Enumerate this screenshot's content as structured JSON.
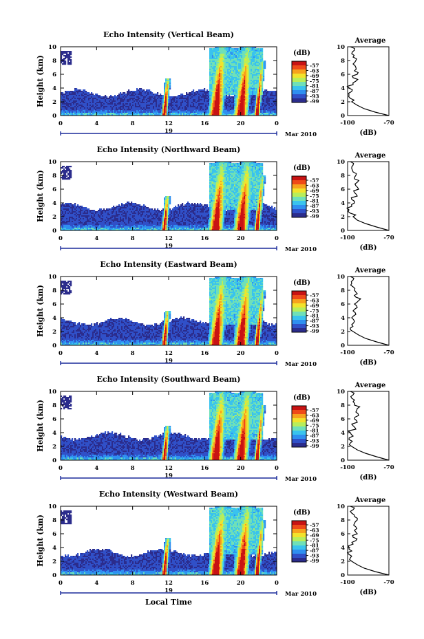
{
  "figure": {
    "xaxis_label": "Local Time",
    "date_label": "Mar 2010",
    "day_label": "19",
    "avg_title": "Average",
    "avg_xlabel": "(dB)",
    "cbar_unit": "(dB)",
    "ylabel": "Height (km)"
  },
  "colors": {
    "colormap": [
      "#2b2c8c",
      "#3050c8",
      "#2f8ff0",
      "#39c3ee",
      "#6fe0b8",
      "#b8ee5a",
      "#f2e32c",
      "#f7a21d",
      "#ef4a18",
      "#c81313"
    ]
  },
  "chart_data": [
    {
      "type": "heatmap",
      "title": "Echo Intensity (Vertical Beam)",
      "xlabel": "Local Time",
      "ylabel": "Height (km)",
      "xlim": [
        0,
        24
      ],
      "ylim": [
        0,
        10
      ],
      "xticks": [
        "0",
        "4",
        "8",
        "12",
        "16",
        "20",
        "0"
      ],
      "yticks": [
        "0",
        "2",
        "4",
        "6",
        "8",
        "10"
      ],
      "colorbar": {
        "label": "(dB)",
        "ticks": [
          "-57",
          "-63",
          "-69",
          "-75",
          "-81",
          "-87",
          "-93",
          "-99"
        ]
      },
      "events": [
        {
          "t": 11.5,
          "top": 5.5
        },
        {
          "t": 17.2,
          "top": 10
        },
        {
          "t": 20,
          "top": 10
        },
        {
          "t": 21.8,
          "top": 8
        }
      ],
      "layer_top": 3.3,
      "average": {
        "xlim": [
          -100,
          -70
        ],
        "xticks": [
          "-100",
          "-70"
        ],
        "yticks": [
          "0",
          "2",
          "4",
          "6",
          "8",
          "10"
        ],
        "profile": [
          [
            0,
            -70
          ],
          [
            0.5,
            -80
          ],
          [
            1,
            -88
          ],
          [
            1.5,
            -93
          ],
          [
            2,
            -97
          ],
          [
            2.5,
            -98
          ],
          [
            3,
            -99
          ],
          [
            3.5,
            -97
          ],
          [
            4,
            -99
          ],
          [
            4.5,
            -96
          ],
          [
            5,
            -94
          ],
          [
            5.5,
            -96
          ],
          [
            6,
            -93
          ],
          [
            6.5,
            -95
          ],
          [
            7,
            -94
          ],
          [
            7.5,
            -96
          ],
          [
            8,
            -94
          ],
          [
            8.5,
            -96
          ],
          [
            9,
            -97
          ],
          [
            9.5,
            -95
          ],
          [
            10,
            -98
          ]
        ]
      }
    },
    {
      "type": "heatmap",
      "title": "Echo Intensity (Northward Beam)",
      "xlabel": "Local Time",
      "ylabel": "Height (km)",
      "xlim": [
        0,
        24
      ],
      "ylim": [
        0,
        10
      ],
      "xticks": [
        "0",
        "4",
        "8",
        "12",
        "16",
        "20",
        "0"
      ],
      "yticks": [
        "0",
        "2",
        "4",
        "6",
        "8",
        "10"
      ],
      "colorbar": {
        "label": "(dB)",
        "ticks": [
          "-57",
          "-63",
          "-69",
          "-75",
          "-81",
          "-87",
          "-93",
          "-99"
        ]
      },
      "events": [
        {
          "t": 11.5,
          "top": 5.0
        },
        {
          "t": 17.2,
          "top": 10
        },
        {
          "t": 20,
          "top": 10
        },
        {
          "t": 21.8,
          "top": 8
        }
      ],
      "layer_top": 3.5,
      "average": {
        "xlim": [
          -100,
          -70
        ],
        "xticks": [
          "-100",
          "-70"
        ],
        "yticks": [
          "0",
          "2",
          "4",
          "6",
          "8",
          "10"
        ],
        "profile": [
          [
            0,
            -70
          ],
          [
            0.5,
            -79
          ],
          [
            1,
            -87
          ],
          [
            1.5,
            -93
          ],
          [
            2,
            -96
          ],
          [
            2.5,
            -98
          ],
          [
            3,
            -99
          ],
          [
            3.5,
            -97
          ],
          [
            4,
            -95
          ],
          [
            4.5,
            -97
          ],
          [
            5,
            -93
          ],
          [
            5.5,
            -95
          ],
          [
            6,
            -92
          ],
          [
            6.5,
            -94
          ],
          [
            7,
            -93
          ],
          [
            7.5,
            -95
          ],
          [
            8,
            -94
          ],
          [
            8.5,
            -96
          ],
          [
            9,
            -97
          ],
          [
            9.5,
            -96
          ],
          [
            10,
            -98
          ]
        ]
      }
    },
    {
      "type": "heatmap",
      "title": "Echo Intensity (Eastward Beam)",
      "xlabel": "Local Time",
      "ylabel": "Height (km)",
      "xlim": [
        0,
        24
      ],
      "ylim": [
        0,
        10
      ],
      "xticks": [
        "0",
        "4",
        "8",
        "12",
        "16",
        "20",
        "0"
      ],
      "yticks": [
        "0",
        "2",
        "4",
        "6",
        "8",
        "10"
      ],
      "colorbar": {
        "label": "(dB)",
        "ticks": [
          "-57",
          "-63",
          "-69",
          "-75",
          "-81",
          "-87",
          "-93",
          "-99"
        ]
      },
      "events": [
        {
          "t": 11.5,
          "top": 5.0
        },
        {
          "t": 17.2,
          "top": 10
        },
        {
          "t": 20,
          "top": 10
        },
        {
          "t": 21.8,
          "top": 8
        }
      ],
      "layer_top": 3.5,
      "average": {
        "xlim": [
          -100,
          -70
        ],
        "xticks": [
          "-100",
          "-70"
        ],
        "yticks": [
          "0",
          "2",
          "4",
          "6",
          "8",
          "10"
        ],
        "profile": [
          [
            0,
            -70
          ],
          [
            0.5,
            -79
          ],
          [
            1,
            -87
          ],
          [
            1.5,
            -92
          ],
          [
            2,
            -96
          ],
          [
            2.5,
            -98
          ],
          [
            3,
            -97
          ],
          [
            3.5,
            -95
          ],
          [
            4,
            -97
          ],
          [
            4.5,
            -94
          ],
          [
            5,
            -96
          ],
          [
            5.5,
            -93
          ],
          [
            6,
            -95
          ],
          [
            6.5,
            -92
          ],
          [
            7,
            -94
          ],
          [
            7.5,
            -93
          ],
          [
            8,
            -95
          ],
          [
            8.5,
            -96
          ],
          [
            9,
            -97
          ],
          [
            9.5,
            -96
          ],
          [
            10,
            -98
          ]
        ]
      }
    },
    {
      "type": "heatmap",
      "title": "Echo Intensity (Southward Beam)",
      "xlabel": "Local Time",
      "ylabel": "Height (km)",
      "xlim": [
        0,
        24
      ],
      "ylim": [
        0,
        10
      ],
      "xticks": [
        "0",
        "4",
        "8",
        "12",
        "16",
        "20",
        "0"
      ],
      "yticks": [
        "0",
        "2",
        "4",
        "6",
        "8",
        "10"
      ],
      "colorbar": {
        "label": "(dB)",
        "ticks": [
          "-57",
          "-63",
          "-69",
          "-75",
          "-81",
          "-87",
          "-93",
          "-99"
        ]
      },
      "events": [
        {
          "t": 11.5,
          "top": 5.0
        },
        {
          "t": 17.2,
          "top": 10
        },
        {
          "t": 20,
          "top": 10
        },
        {
          "t": 21.8,
          "top": 8
        }
      ],
      "layer_top": 3.5,
      "average": {
        "xlim": [
          -100,
          -70
        ],
        "xticks": [
          "-100",
          "-70"
        ],
        "yticks": [
          "0",
          "2",
          "4",
          "6",
          "8",
          "10"
        ],
        "profile": [
          [
            0,
            -70
          ],
          [
            0.5,
            -79
          ],
          [
            1,
            -87
          ],
          [
            1.5,
            -93
          ],
          [
            2,
            -97
          ],
          [
            2.5,
            -98
          ],
          [
            3,
            -99
          ],
          [
            3.5,
            -96
          ],
          [
            4,
            -98
          ],
          [
            4.5,
            -94
          ],
          [
            5,
            -96
          ],
          [
            5.5,
            -93
          ],
          [
            6,
            -95
          ],
          [
            6.5,
            -92
          ],
          [
            7,
            -94
          ],
          [
            7.5,
            -93
          ],
          [
            8,
            -95
          ],
          [
            8.5,
            -96
          ],
          [
            9,
            -97
          ],
          [
            9.5,
            -96
          ],
          [
            10,
            -98
          ]
        ]
      }
    },
    {
      "type": "heatmap",
      "title": "Echo Intensity (Westward Beam)",
      "xlabel": "Local Time",
      "ylabel": "Height (km)",
      "xlim": [
        0,
        24
      ],
      "ylim": [
        0,
        10
      ],
      "xticks": [
        "0",
        "4",
        "8",
        "12",
        "16",
        "20",
        "0"
      ],
      "yticks": [
        "0",
        "2",
        "4",
        "6",
        "8",
        "10"
      ],
      "colorbar": {
        "label": "(dB)",
        "ticks": [
          "-57",
          "-63",
          "-69",
          "-75",
          "-81",
          "-87",
          "-93",
          "-99"
        ]
      },
      "events": [
        {
          "t": 11.5,
          "top": 5.5
        },
        {
          "t": 17.2,
          "top": 10
        },
        {
          "t": 20,
          "top": 10
        },
        {
          "t": 21.8,
          "top": 8
        }
      ],
      "layer_top": 3.3,
      "average": {
        "xlim": [
          -100,
          -70
        ],
        "xticks": [
          "-100",
          "-70"
        ],
        "yticks": [
          "0",
          "2",
          "4",
          "6",
          "8",
          "10"
        ],
        "profile": [
          [
            0,
            -70
          ],
          [
            0.5,
            -80
          ],
          [
            1,
            -88
          ],
          [
            1.5,
            -93
          ],
          [
            2,
            -97
          ],
          [
            2.5,
            -98
          ],
          [
            3,
            -99
          ],
          [
            3.5,
            -97
          ],
          [
            4,
            -99
          ],
          [
            4.5,
            -96
          ],
          [
            5,
            -94
          ],
          [
            5.5,
            -96
          ],
          [
            6,
            -93
          ],
          [
            6.5,
            -95
          ],
          [
            7,
            -94
          ],
          [
            7.5,
            -95
          ],
          [
            8,
            -93
          ],
          [
            8.5,
            -95
          ],
          [
            9,
            -97
          ],
          [
            9.5,
            -96
          ],
          [
            10,
            -98
          ]
        ]
      }
    }
  ]
}
